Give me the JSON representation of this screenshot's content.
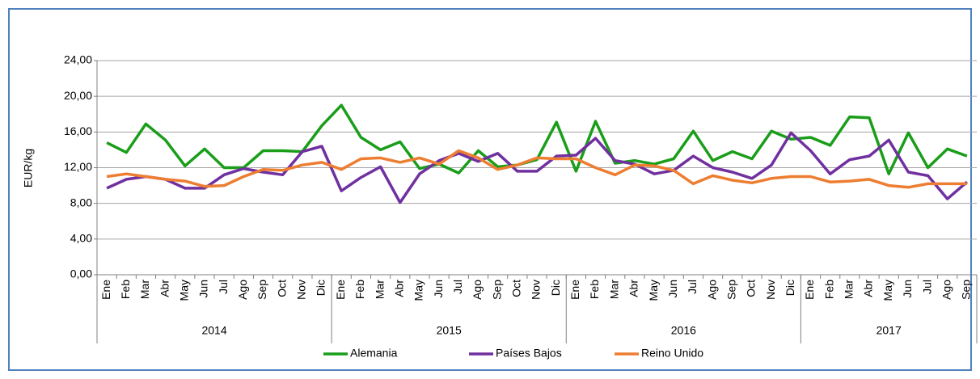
{
  "chart_data": {
    "type": "line",
    "y_axis_label": "EUR/kg",
    "categories": [
      "Ene",
      "Feb",
      "Mar",
      "Abr",
      "May",
      "Jun",
      "Jul",
      "Ago",
      "Sep",
      "Oct",
      "Nov",
      "Dic",
      "Ene",
      "Feb",
      "Mar",
      "Abr",
      "May",
      "Jun",
      "Jul",
      "Ago",
      "Sep",
      "Oct",
      "Nov",
      "Dic",
      "Ene",
      "Feb",
      "Mar",
      "Abr",
      "May",
      "Jun",
      "Jul",
      "Ago",
      "Sep",
      "Oct",
      "Nov",
      "Dic",
      "Ene",
      "Feb",
      "Mar",
      "Abr",
      "May",
      "Jun",
      "Jul",
      "Ago",
      "Sep"
    ],
    "year_labels": [
      "2014",
      "2015",
      "2016",
      "2017"
    ],
    "series": [
      {
        "name": "Alemania",
        "color": "#1a9e1a",
        "values": [
          14.8,
          13.7,
          16.9,
          15.1,
          12.2,
          14.1,
          12.0,
          12.0,
          13.9,
          13.9,
          13.8,
          16.7,
          19.0,
          15.4,
          14.0,
          14.9,
          11.9,
          12.4,
          11.4,
          13.9,
          12.1,
          12.3,
          12.9,
          17.1,
          11.6,
          17.2,
          12.5,
          12.8,
          12.4,
          13.0,
          16.1,
          12.8,
          13.8,
          13.0,
          16.1,
          15.2,
          15.4,
          14.5,
          17.7,
          17.6,
          11.3,
          15.9,
          12.0,
          14.1,
          13.3
        ]
      },
      {
        "name": "Países Bajos",
        "color": "#7030a0",
        "values": [
          9.7,
          10.7,
          11.0,
          10.7,
          9.7,
          9.7,
          11.2,
          11.9,
          11.5,
          11.2,
          13.8,
          14.4,
          9.4,
          10.9,
          12.1,
          8.1,
          11.3,
          12.8,
          13.6,
          12.7,
          13.6,
          11.6,
          11.6,
          13.3,
          13.4,
          15.3,
          12.8,
          12.4,
          11.3,
          11.7,
          13.3,
          12.0,
          11.5,
          10.8,
          12.3,
          15.9,
          13.9,
          11.3,
          12.9,
          13.3,
          15.1,
          11.5,
          11.1,
          8.5,
          10.4
        ]
      },
      {
        "name": "Reino Unido",
        "color": "#ed7d31",
        "values": [
          11.0,
          11.3,
          11.0,
          10.7,
          10.5,
          9.9,
          10.0,
          11.0,
          11.8,
          11.7,
          12.3,
          12.6,
          11.8,
          13.0,
          13.1,
          12.6,
          13.1,
          12.4,
          13.9,
          13.1,
          11.8,
          12.3,
          13.1,
          13.0,
          13.0,
          12.0,
          11.2,
          12.3,
          12.2,
          11.7,
          10.2,
          11.1,
          10.6,
          10.3,
          10.8,
          11.0,
          11.0,
          10.4,
          10.5,
          10.7,
          10.0,
          9.8,
          10.2,
          10.2,
          10.2
        ]
      }
    ],
    "ylim": [
      0,
      24
    ],
    "yticks": [
      {
        "value": 0,
        "label": "0,00"
      },
      {
        "value": 4,
        "label": "4,00"
      },
      {
        "value": 8,
        "label": "8,00"
      },
      {
        "value": 12,
        "label": "12,00"
      },
      {
        "value": 16,
        "label": "16,00"
      },
      {
        "value": 20,
        "label": "20,00"
      },
      {
        "value": 24,
        "label": "24,00"
      }
    ],
    "grid": true,
    "legend": "bottom"
  }
}
